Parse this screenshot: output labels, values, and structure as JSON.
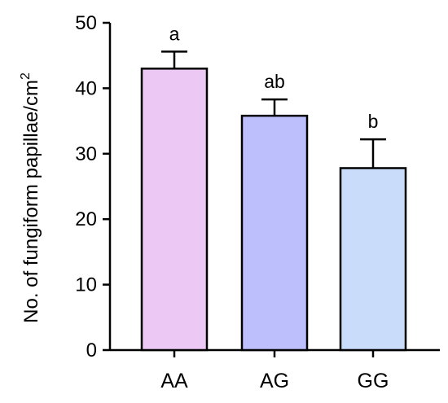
{
  "chart_data": {
    "type": "bar",
    "categories": [
      "AA",
      "AG",
      "GG"
    ],
    "values": [
      43.0,
      35.8,
      27.8
    ],
    "errors": [
      2.6,
      2.5,
      4.4
    ],
    "significance_labels": [
      "a",
      "ab",
      "b"
    ],
    "colors": [
      "#ecc9f4",
      "#bcbffb",
      "#c9dcfa"
    ],
    "title": "",
    "xlabel": "",
    "ylabel_main": "No. of fungiform papillae/cm",
    "ylabel_superscript": "2",
    "ylim": [
      0,
      50
    ],
    "yticks": [
      "0",
      "10",
      "20",
      "30",
      "40",
      "50"
    ],
    "grid": false
  }
}
